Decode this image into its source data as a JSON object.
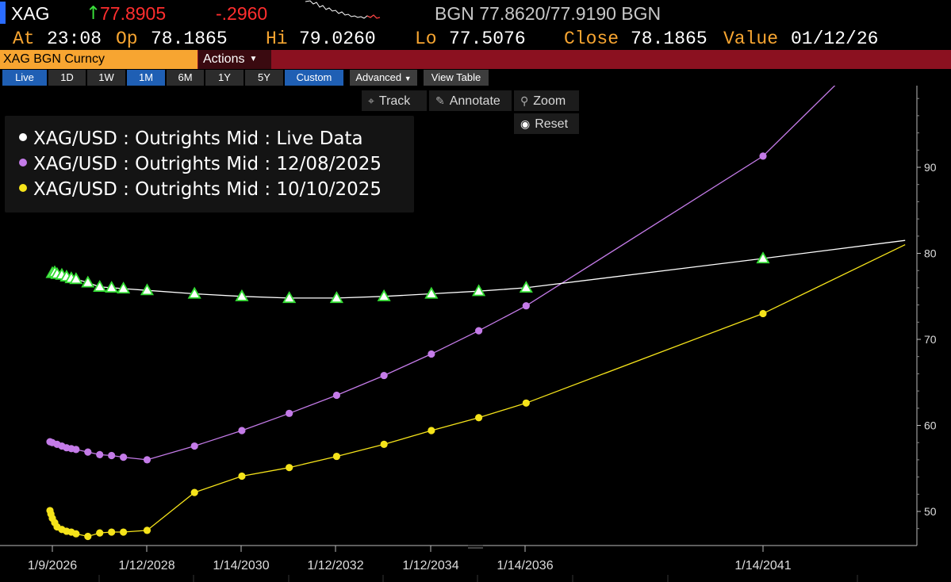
{
  "quote": {
    "ticker": "XAG",
    "arrow": "↑",
    "last": "77.8905",
    "change": "-.2960",
    "bid_ask": "BGN 77.8620/77.9190 BGN",
    "accent_up": "#3be23b",
    "accent_down": "#ff2e2e"
  },
  "stats": {
    "at_label": "At",
    "at_value": "23:08",
    "op_label": "Op",
    "op_value": "78.1865",
    "hi_label": "Hi",
    "hi_value": "79.0260",
    "lo_label": "Lo",
    "lo_value": "77.5076",
    "close_label": "Close",
    "close_value": "78.1865",
    "value_label": "Value",
    "value_date": "01/12/26"
  },
  "command": {
    "security": "XAG BGN Curncy",
    "actions": "Actions"
  },
  "ranges": [
    "Live",
    "1D",
    "1W",
    "1M",
    "6M",
    "1Y",
    "5Y",
    "Custom"
  ],
  "range_active": [
    "Live",
    "1M",
    "Custom"
  ],
  "range_extra": {
    "advanced": "Advanced",
    "view_table": "View Table"
  },
  "tools": {
    "track": "Track",
    "annotate": "Annotate",
    "zoom": "Zoom",
    "reset": "Reset"
  },
  "chart_data": {
    "type": "line",
    "title": "",
    "xlabel": "",
    "ylabel": "",
    "x_ticks": [
      "1/9/2026",
      "1/12/2028",
      "1/14/2030",
      "1/12/2032",
      "1/12/2034",
      "1/14/2036",
      "1/14/2041"
    ],
    "y_ticks": [
      50,
      60,
      70,
      80,
      90
    ],
    "ylim": [
      46,
      100
    ],
    "y_axis_side": "right",
    "grid": false,
    "legend_position": "top-left",
    "x_unit": "years",
    "x_range": [
      2025.85,
      2043.4
    ],
    "series": [
      {
        "name": "XAG/USD : Outrights Mid : Live Data",
        "color": "#ffffff",
        "marker": "triangle",
        "marker_color": "#33dd33",
        "x": [
          2026.0,
          2026.05,
          2026.1,
          2026.2,
          2026.3,
          2026.4,
          2026.5,
          2026.75,
          2027.0,
          2027.25,
          2027.5,
          2028.0,
          2029.0,
          2030.0,
          2031.0,
          2032.0,
          2033.0,
          2034.0,
          2035.0,
          2036.0,
          2041.0,
          2044.0
        ],
        "y": [
          77.7,
          77.8,
          77.6,
          77.5,
          77.3,
          77.1,
          77.0,
          76.6,
          76.1,
          76.0,
          75.9,
          75.7,
          75.3,
          75.0,
          74.8,
          74.8,
          75.0,
          75.3,
          75.6,
          76.0,
          79.4,
          81.5
        ],
        "markers_until": 2041.0
      },
      {
        "name": "XAG/USD : Outrights Mid : 12/08/2025",
        "color": "#c47be8",
        "marker": "circle",
        "x": [
          2025.95,
          2026.0,
          2026.1,
          2026.2,
          2026.3,
          2026.4,
          2026.5,
          2026.75,
          2027.0,
          2027.25,
          2027.5,
          2028.0,
          2029.0,
          2030.0,
          2031.0,
          2032.0,
          2033.0,
          2034.0,
          2035.0,
          2036.0,
          2041.0,
          2042.7
        ],
        "y": [
          58.1,
          58.0,
          57.8,
          57.6,
          57.4,
          57.3,
          57.2,
          56.9,
          56.6,
          56.5,
          56.3,
          56.0,
          57.6,
          59.4,
          61.4,
          63.5,
          65.8,
          68.3,
          71.0,
          73.9,
          91.3,
          100.5
        ],
        "markers_until": 2041.0
      },
      {
        "name": "XAG/USD : Outrights Mid : 10/10/2025",
        "color": "#f5e31a",
        "marker": "circle",
        "x": [
          2025.95,
          2025.97,
          2026.0,
          2026.05,
          2026.1,
          2026.2,
          2026.3,
          2026.4,
          2026.5,
          2026.75,
          2027.0,
          2027.25,
          2027.5,
          2028.0,
          2029.0,
          2030.0,
          2031.0,
          2032.0,
          2033.0,
          2034.0,
          2035.0,
          2036.0,
          2041.0,
          2044.0
        ],
        "y": [
          50.1,
          49.7,
          49.2,
          48.7,
          48.2,
          47.9,
          47.7,
          47.6,
          47.4,
          47.1,
          47.5,
          47.6,
          47.6,
          47.8,
          52.2,
          54.1,
          55.1,
          56.4,
          57.8,
          59.4,
          60.9,
          62.6,
          73.0,
          81.0
        ],
        "markers_until": 2041.0
      }
    ]
  }
}
